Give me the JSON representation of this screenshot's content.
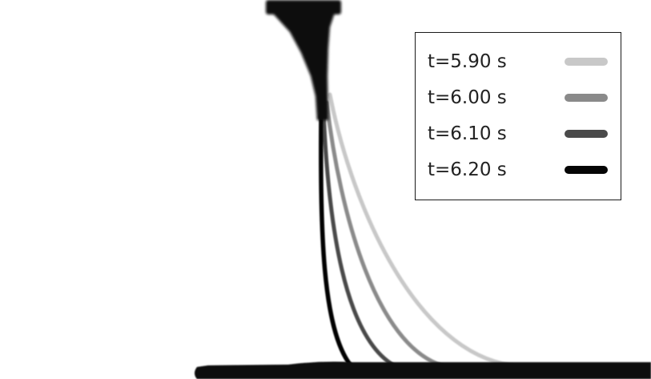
{
  "legend": {
    "entries": [
      {
        "label": "t=5.90 s",
        "color": "#c8c8c8"
      },
      {
        "label": "t=6.00 s",
        "color": "#8a8a8a"
      },
      {
        "label": "t=6.10 s",
        "color": "#4a4a4a"
      },
      {
        "label": "t=6.20 s",
        "color": "#050505"
      }
    ]
  },
  "colors": {
    "background": "#ffffff",
    "nozzle": "#0a0a0a",
    "substrate": "#0a0a0a"
  }
}
